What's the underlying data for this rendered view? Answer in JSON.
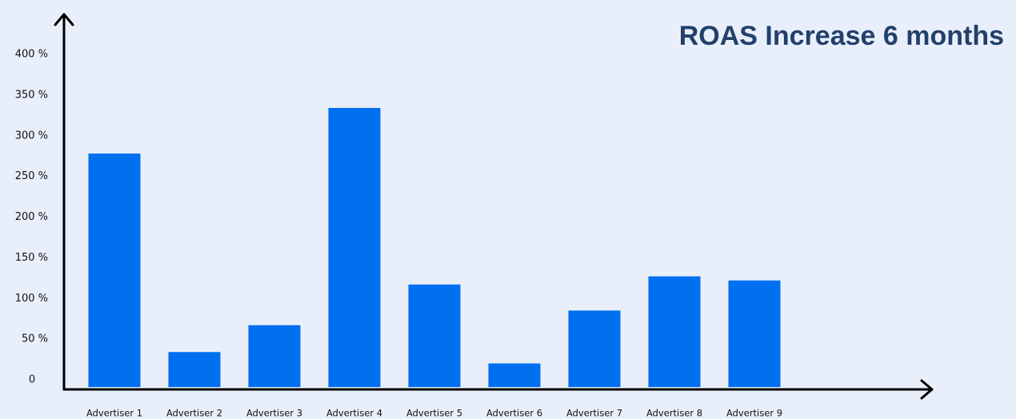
{
  "chart_data": {
    "type": "bar",
    "title": "ROAS Increase 6 months",
    "categories": [
      "Advertiser 1",
      "Advertiser 2",
      "Advertiser 3",
      "Advertiser 4",
      "Advertiser 5",
      "Advertiser 6",
      "Advertiser 7",
      "Advertiser 8",
      "Advertiser 9"
    ],
    "values": [
      287,
      43,
      76,
      343,
      126,
      29,
      94,
      136,
      131
    ],
    "color": "#0070f0",
    "ylim": [
      0,
      400
    ],
    "yticks": [
      0,
      {
        "value": 50,
        "label": "50 %"
      },
      {
        "value": 100,
        "label": "100 %"
      },
      {
        "value": 150,
        "label": "150 %"
      },
      {
        "value": 200,
        "label": "200 %"
      },
      {
        "value": 250,
        "label": "250 %"
      },
      {
        "value": 300,
        "label": "300 %"
      },
      {
        "value": 350,
        "label": "350 %"
      },
      {
        "value": 400,
        "label": "400 %"
      }
    ],
    "grid": false
  }
}
